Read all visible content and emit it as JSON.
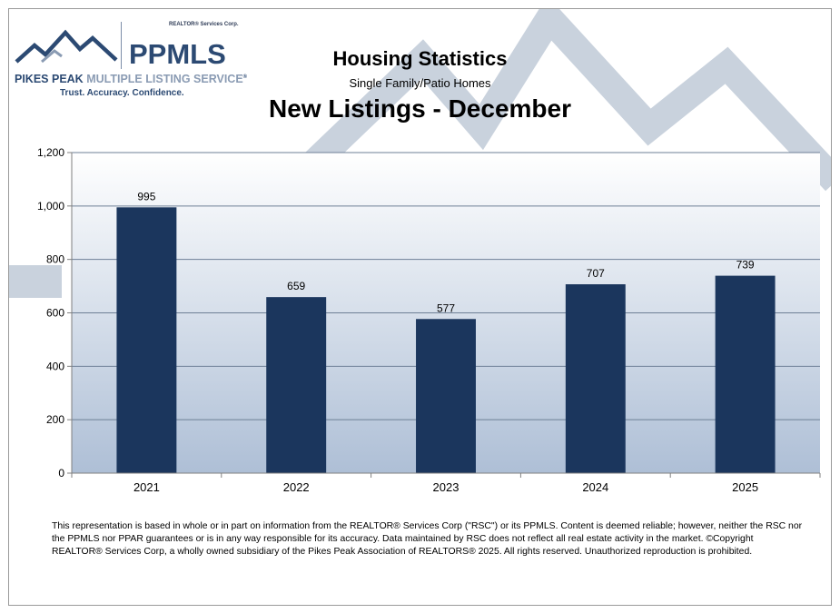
{
  "logo": {
    "corp_label": "REALTOR® Services Corp.",
    "brand": "PPMLS",
    "name_bold": "PIKES PEAK",
    "name_light": "MULTIPLE LISTING SERVICE",
    "trademark": "®",
    "tagline": "Trust. Accuracy. Confidence.",
    "colors": {
      "navy": "#2c4a73",
      "light": "#8a9bb3"
    }
  },
  "titles": {
    "main": "Housing Statistics",
    "sub": "Single Family/Patio Homes",
    "chart_title": "New Listings - December"
  },
  "chart_data": {
    "type": "bar",
    "title": "New Listings - December",
    "categories": [
      "2021",
      "2022",
      "2023",
      "2024",
      "2025"
    ],
    "values": [
      995,
      659,
      577,
      707,
      739
    ],
    "data_labels": [
      "995",
      "659",
      "577",
      "707",
      "739"
    ],
    "ylim": [
      0,
      1200
    ],
    "yticks": [
      0,
      200,
      400,
      600,
      800,
      1000,
      1200
    ],
    "ytick_labels": [
      "0",
      "200",
      "400",
      "600",
      "800",
      "1,000",
      "1,200"
    ],
    "xlabel": "",
    "ylabel": "",
    "grid": true,
    "legend": "none",
    "colors": {
      "bar": "#1b365d",
      "grid": "#6e7f96",
      "plot_top": "#ffffff",
      "plot_bottom": "#aebfd6"
    }
  },
  "footer": {
    "text": "This representation is based in whole or in part on information from the REALTOR® Services Corp (\"RSC\") or its PPMLS. Content is deemed reliable;  however, neither the RSC nor the PPMLS nor PPAR guarantees or is in any way responsible for its accuracy. Data maintained by RSC does not reflect all real estate activity in the market. ©Copyright REALTOR® Services Corp, a wholly owned subsidiary of the Pikes Peak Association of REALTORS® 2025.  All rights reserved. Unauthorized reproduction is prohibited."
  }
}
